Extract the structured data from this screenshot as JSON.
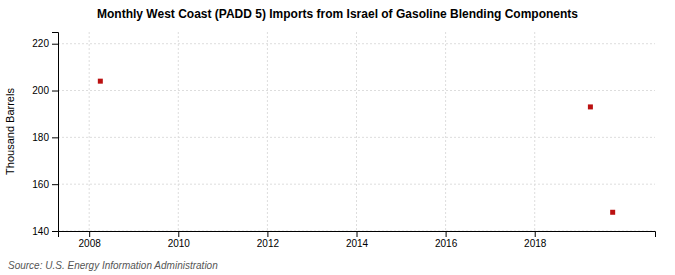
{
  "chart_data": {
    "type": "scatter",
    "title": "Monthly West Coast (PADD 5) Imports from Israel of Gasoline Blending Components",
    "ylabel": "Thousand Barrels",
    "annotations": [
      "Source: U.S. Energy Information Administration"
    ],
    "x": [
      2008.25,
      2019.25,
      2019.75
    ],
    "values": [
      204,
      193,
      148
    ],
    "color": "#bb1111",
    "marker": "square",
    "xlim": [
      2007.3,
      2020.7
    ],
    "ylim": [
      140,
      225
    ],
    "xticks": [
      2008,
      2010,
      2012,
      2014,
      2016,
      2018
    ],
    "yticks": [
      140,
      160,
      180,
      200,
      220
    ],
    "grid": true
  }
}
